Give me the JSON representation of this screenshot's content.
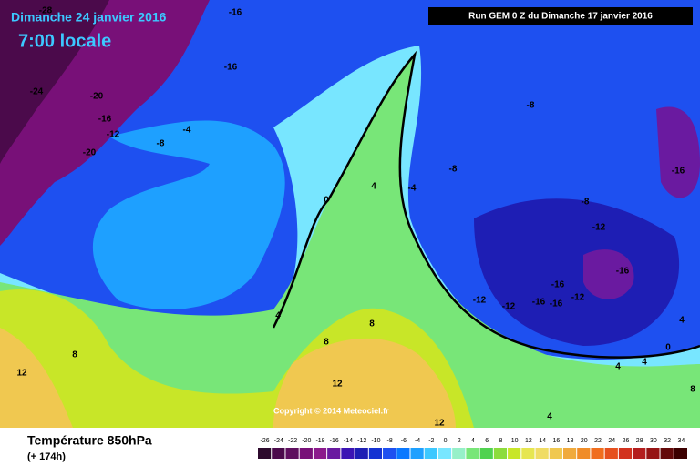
{
  "header": {
    "date": "Dimanche 24 janvier 2016",
    "time": "7:00 locale",
    "run": "Run GEM 0 Z du Dimanche 17 janvier 2016"
  },
  "map": {
    "copyright": "Copyright © 2014 Meteociel.fr",
    "contour_labels": [
      -28,
      -16,
      -16,
      -24,
      -20,
      -16,
      -12,
      -20,
      -8,
      -4,
      0,
      -8,
      -8,
      -16,
      -8,
      -12,
      -16,
      -16,
      -12,
      -12,
      -16,
      -16,
      -12,
      4,
      8,
      8,
      8,
      12,
      12,
      12,
      4,
      4,
      0,
      4,
      4,
      4,
      -4,
      8
    ]
  },
  "footer": {
    "title": "Température 850hPa",
    "lead": "(+ 174h)"
  },
  "legend": {
    "values": [
      -26,
      -24,
      -22,
      -20,
      -18,
      -16,
      -14,
      -12,
      -10,
      -8,
      -6,
      -4,
      -2,
      0,
      2,
      4,
      6,
      8,
      10,
      12,
      14,
      16,
      18,
      20,
      22,
      24,
      26,
      28,
      30,
      32,
      34
    ],
    "colors": [
      "#2d0a2d",
      "#4b0a4b",
      "#5f0f5f",
      "#781078",
      "#8c1a8c",
      "#6a1aa0",
      "#3c14b4",
      "#1e1eb4",
      "#1432d2",
      "#1e50f0",
      "#0a78ff",
      "#1ea0ff",
      "#3cc8ff",
      "#78e6ff",
      "#96f0c8",
      "#78e678",
      "#50d250",
      "#8cdc3c",
      "#c8e628",
      "#e6e650",
      "#f0dc64",
      "#f0c850",
      "#f0aa3c",
      "#f08c28",
      "#f06e1e",
      "#e6501e",
      "#d2321e",
      "#b41e1e",
      "#961414",
      "#640a0a",
      "#3c0000"
    ]
  }
}
